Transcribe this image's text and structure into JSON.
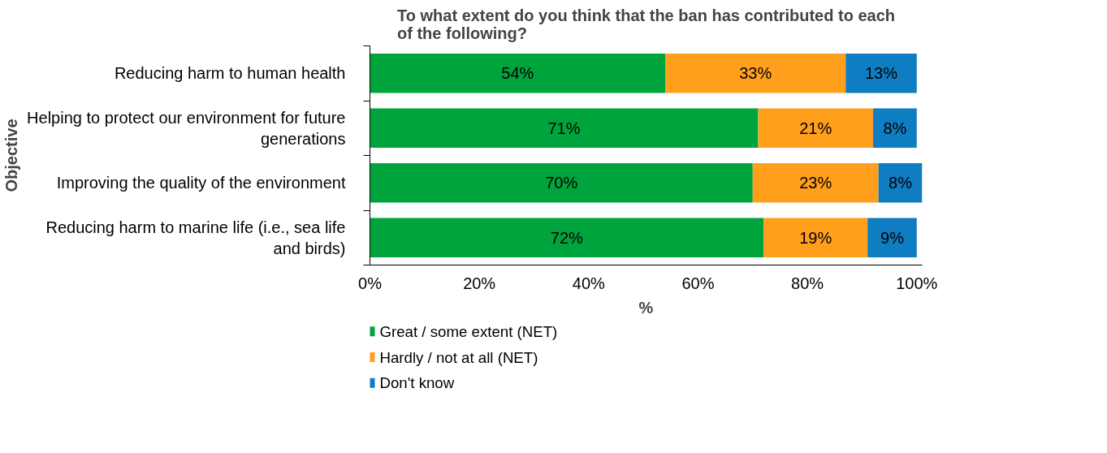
{
  "chart_data": {
    "type": "bar",
    "orientation": "horizontal",
    "stacked": true,
    "title": "To what extent do you think that the ban has contributed to each of the following?",
    "xlabel": "%",
    "ylabel": "Objective",
    "categories": [
      "Reducing harm to human health",
      "Helping to protect our environment for future generations",
      "Improving the quality of the environment",
      "Reducing harm to marine life (i.e., sea life and birds)"
    ],
    "series": [
      {
        "name": "Great / some extent (NET)",
        "color": "#00a43c",
        "values": [
          54,
          71,
          70,
          72
        ],
        "value_labels": [
          "54%",
          "71%",
          "70%",
          "72%"
        ]
      },
      {
        "name": "Hardly / not at all (NET)",
        "color": "#ff9f1c",
        "values": [
          33,
          21,
          23,
          19
        ],
        "value_labels": [
          "33%",
          "21%",
          "23%",
          "19%"
        ]
      },
      {
        "name": "Don't know",
        "color": "#0f7dc2",
        "values": [
          13,
          8,
          8,
          9
        ],
        "value_labels": [
          "13%",
          "8%",
          "8%",
          "9%"
        ]
      }
    ],
    "xlim": [
      0,
      101
    ],
    "xticks": [
      {
        "value": 0,
        "label": "0%"
      },
      {
        "value": 20,
        "label": "20%"
      },
      {
        "value": 40,
        "label": "40%"
      },
      {
        "value": 60,
        "label": "60%"
      },
      {
        "value": 80,
        "label": "80%"
      },
      {
        "value": 100,
        "label": "100%"
      }
    ],
    "grid": false,
    "legend": "bottom"
  }
}
